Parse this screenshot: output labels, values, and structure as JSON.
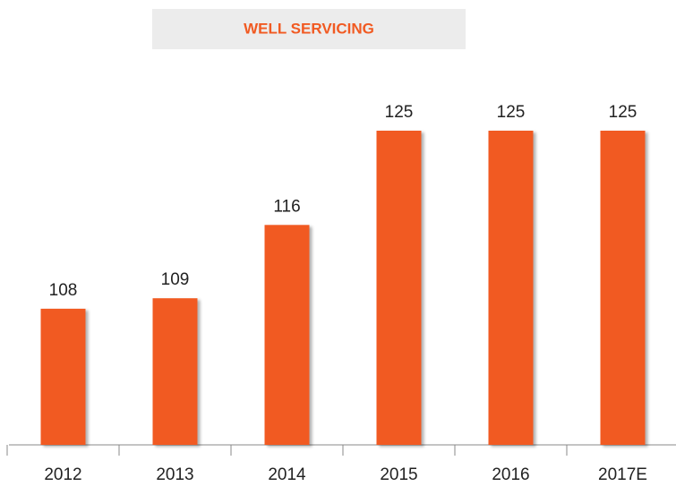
{
  "chart_data": {
    "type": "bar",
    "title": "WELL SERVICING",
    "categories": [
      "2012",
      "2013",
      "2014",
      "2015",
      "2016",
      "2017E"
    ],
    "values": [
      108,
      109,
      116,
      125,
      125,
      125
    ],
    "color": "#f15a22",
    "ylim": [
      95,
      125
    ]
  }
}
